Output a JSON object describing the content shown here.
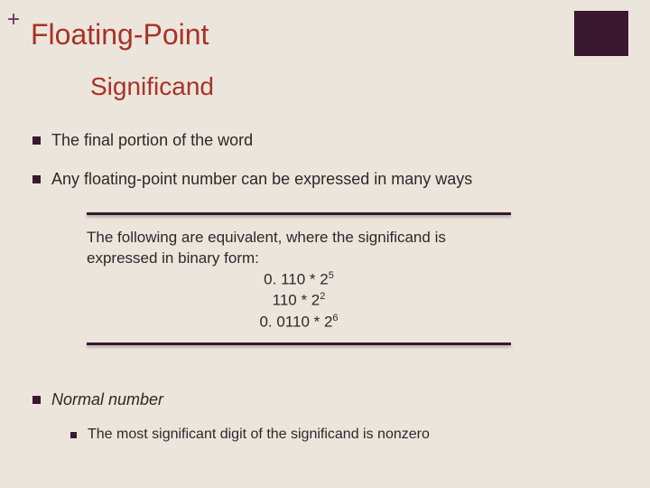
{
  "decor": {
    "plus": "+",
    "corner_color": "#3a1830",
    "background": "#ebe5dc"
  },
  "title": "Floating-Point",
  "subtitle": "Significand",
  "title_color": "#a93226",
  "bullet_color": "#3a1830",
  "text_color": "#2a2a2a",
  "bullets": {
    "b0": "The final portion of the word",
    "b1": "Any floating-point number can be expressed in many ways",
    "b2": "Normal number",
    "sub0": "The most significant digit of the significand is nonzero"
  },
  "box": {
    "intro": "The following are equivalent, where the significand is expressed in binary form:",
    "lines": {
      "l0_mantissa": "0. 110 * 2",
      "l0_exp": "5",
      "l1_mantissa": "110 * 2",
      "l1_exp": "2",
      "l2_mantissa": "0. 0110 * 2",
      "l2_exp": "6"
    },
    "rule_color": "#3a1830"
  },
  "fonts": {
    "title_size": 32,
    "subtitle_size": 28,
    "body_size": 18,
    "sub_size": 16
  }
}
